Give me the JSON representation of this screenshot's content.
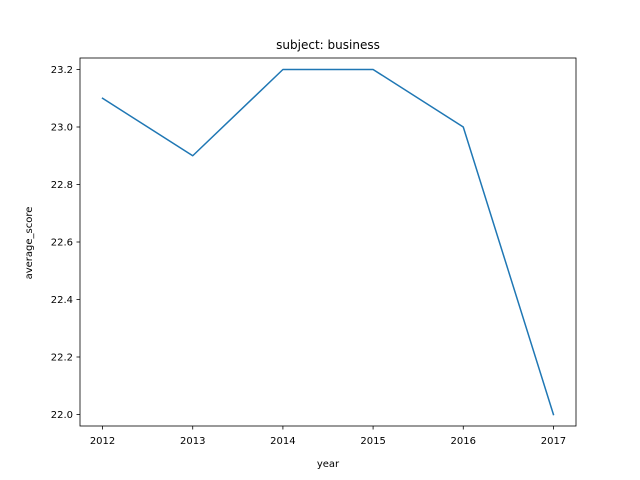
{
  "chart_data": {
    "type": "line",
    "title": "subject: business",
    "xlabel": "year",
    "ylabel": "average_score",
    "x": [
      2012,
      2013,
      2014,
      2015,
      2016,
      2017
    ],
    "series": [
      {
        "values": [
          23.1,
          22.9,
          23.2,
          23.2,
          23.0,
          22.0
        ]
      }
    ],
    "xticks": [
      "2012",
      "2013",
      "2014",
      "2015",
      "2016",
      "2017"
    ],
    "yticks": [
      "22.0",
      "22.2",
      "22.4",
      "22.6",
      "22.8",
      "23.0",
      "23.2"
    ],
    "xlim": [
      2011.75,
      2017.25
    ],
    "ylim": [
      21.96,
      23.24
    ],
    "grid": false,
    "line_color": "#1f77b4"
  }
}
